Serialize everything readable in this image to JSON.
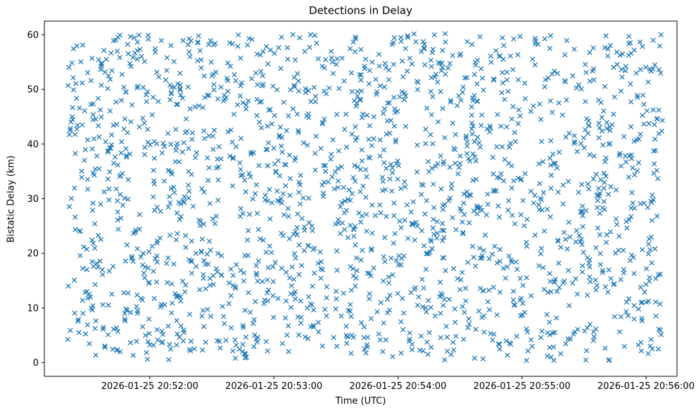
{
  "figure": {
    "background": "#ffffff"
  },
  "chart_data": {
    "type": "scatter",
    "title": "Detections in Delay",
    "xlabel": "Time (UTC)",
    "ylabel": "Bistatic Delay (km)",
    "marker": "x",
    "marker_color": "#1f77b4",
    "grid": false,
    "legend": "none",
    "x_tick_labels": [
      "2026-01-25 20:52:00",
      "2026-01-25 20:53:00",
      "2026-01-25 20:54:00",
      "2026-01-25 20:55:00",
      "2026-01-25 20:56:00"
    ],
    "x_ticks_s": [
      51,
      111,
      171,
      231,
      291
    ],
    "x_domain_s": [
      0,
      306
    ],
    "x_domain_time": [
      "2026-01-25 20:51:09",
      "2026-01-25 20:56:15"
    ],
    "y_tick_labels": [
      "0",
      "10",
      "20",
      "30",
      "40",
      "50",
      "60"
    ],
    "y_ticks": [
      0,
      10,
      20,
      30,
      40,
      50,
      60
    ],
    "y_domain": [
      -2.5,
      62.5
    ],
    "ylim": [
      0,
      60
    ],
    "points": {
      "description": "dense uniform random cloud of x markers covering the full axes",
      "n": 1900,
      "distribution": "uniform",
      "seed": 42,
      "x_range_s": [
        11,
        299
      ],
      "y_range": [
        0.4,
        60.2
      ]
    }
  }
}
